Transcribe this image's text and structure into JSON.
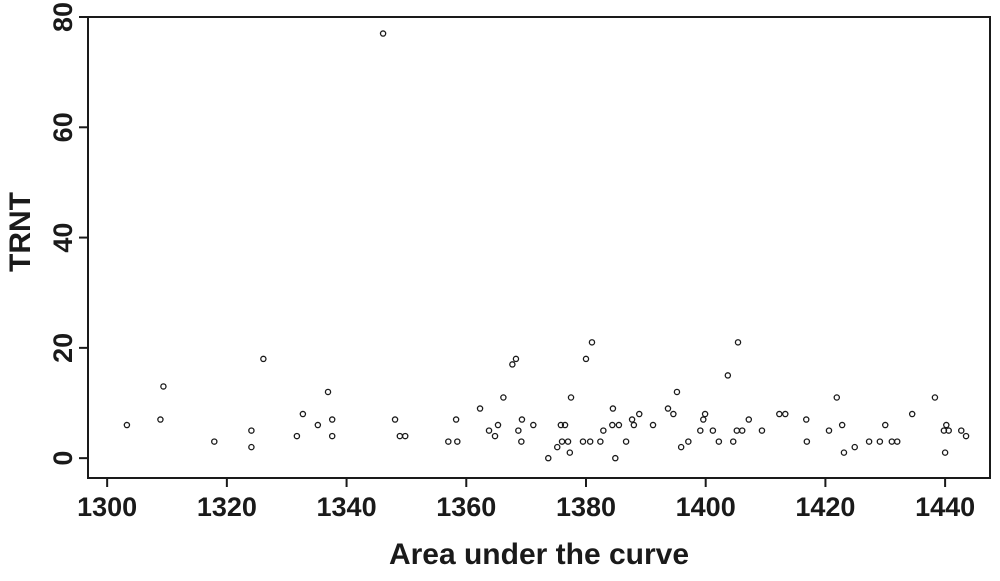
{
  "chart_data": {
    "type": "scatter",
    "x_label": "Area under the curve",
    "y_label": "TRNT",
    "xlim": [
      1296.8,
      1447.5
    ],
    "ylim": [
      -3.6,
      80
    ],
    "xticks": [
      1300,
      1320,
      1340,
      1360,
      1380,
      1400,
      1420,
      1440
    ],
    "yticks": [
      0,
      20,
      40,
      60,
      80
    ],
    "color": "#1a1a1a",
    "x": [
      1303.3,
      1308.9,
      1309.4,
      1317.9,
      1324.1,
      1324.1,
      1326.1,
      1331.7,
      1332.7,
      1335.2,
      1336.9,
      1337.6,
      1337.6,
      1346.1,
      1348.1,
      1348.9,
      1349.8,
      1357,
      1358.3,
      1358.5,
      1362.3,
      1363.8,
      1364.8,
      1365.3,
      1366.2,
      1367.7,
      1368.3,
      1368.7,
      1369.2,
      1369.3,
      1371.2,
      1373.7,
      1375.2,
      1375.8,
      1376,
      1376.5,
      1377,
      1377.3,
      1377.5,
      1379.5,
      1380,
      1380.7,
      1381,
      1382.4,
      1382.9,
      1384.4,
      1384.5,
      1384.9,
      1385.5,
      1386.7,
      1387.7,
      1388,
      1388.9,
      1391.2,
      1393.7,
      1394.6,
      1395.2,
      1395.9,
      1397.1,
      1399.1,
      1399.6,
      1399.9,
      1401.2,
      1402.2,
      1403.7,
      1404.6,
      1405.2,
      1405.4,
      1406.1,
      1407.2,
      1409.4,
      1412.3,
      1413.3,
      1416.8,
      1416.9,
      1420.6,
      1421.9,
      1422.8,
      1423.1,
      1424.9,
      1427.3,
      1429.1,
      1430,
      1431.1,
      1432,
      1434.5,
      1438.3,
      1440,
      1440.2,
      1439.8,
      1440.6,
      1442.7,
      1443.5
    ],
    "values": [
      6,
      7,
      13,
      3,
      5,
      2,
      18,
      4,
      8,
      6,
      12,
      7,
      4,
      77,
      7,
      4,
      4,
      3,
      7,
      3,
      9,
      5,
      4,
      6,
      11,
      17,
      18,
      5,
      3,
      7,
      6,
      0,
      2,
      6,
      3,
      6,
      3,
      1,
      11,
      3,
      18,
      3,
      21,
      3,
      5,
      6,
      9,
      0,
      6,
      3,
      7,
      6,
      8,
      6,
      9,
      8,
      12,
      2,
      3,
      5,
      7,
      8,
      5,
      3,
      15,
      3,
      5,
      21,
      5,
      7,
      5,
      8,
      8,
      7,
      3,
      5,
      11,
      6,
      1,
      2,
      3,
      3,
      6,
      3,
      3,
      8,
      11,
      1,
      6,
      5,
      5,
      5,
      4
    ]
  }
}
